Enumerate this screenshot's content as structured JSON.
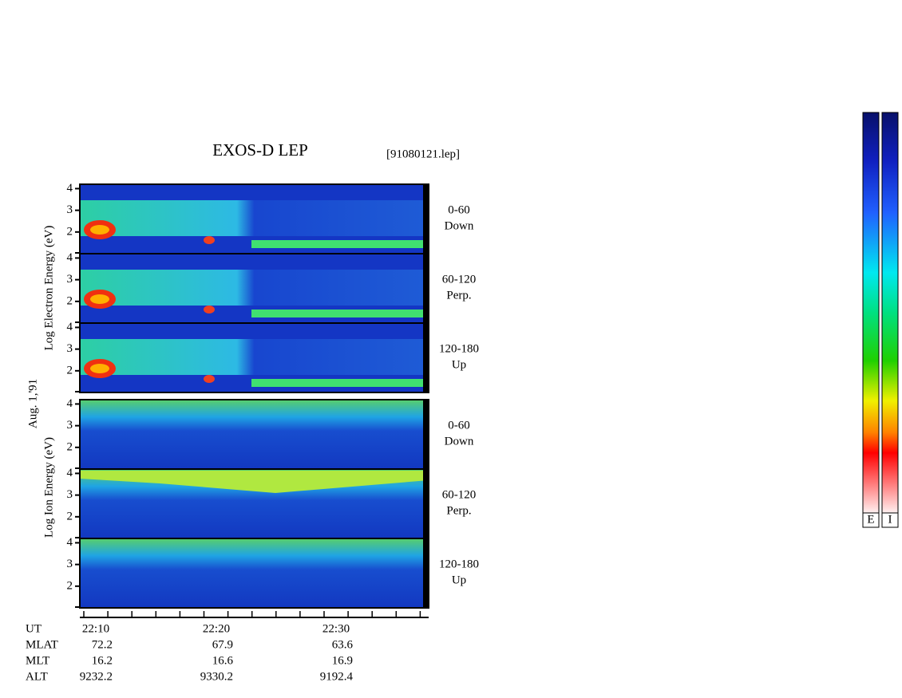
{
  "title": "EXOS-D LEP",
  "file": "[91080121.lep]",
  "date": "Aug. 1,'91",
  "ylim": [
    1,
    4.2
  ],
  "yticks": [
    2,
    3,
    4
  ],
  "groups": [
    {
      "label": "Log Electron Energy (eV)",
      "panels": [
        {
          "angle": "0-60",
          "direction": "Down"
        },
        {
          "angle": "60-120",
          "direction": "Perp."
        },
        {
          "angle": "120-180",
          "direction": "Up"
        }
      ]
    },
    {
      "label": "Log Ion Energy (eV)",
      "panels": [
        {
          "angle": "0-60",
          "direction": "Down"
        },
        {
          "angle": "60-120",
          "direction": "Perp."
        },
        {
          "angle": "120-180",
          "direction": "Up"
        }
      ]
    }
  ],
  "x_rows": [
    {
      "name": "UT",
      "values": [
        "22:10",
        "22:20",
        "22:30"
      ]
    },
    {
      "name": "MLAT",
      "values": [
        "72.2",
        "67.9",
        "63.6"
      ]
    },
    {
      "name": "MLT",
      "values": [
        "16.2",
        "16.6",
        "16.9"
      ]
    },
    {
      "name": "ALT",
      "values": [
        "9232.2",
        "9330.2",
        "9192.4"
      ]
    }
  ],
  "colorbars": [
    "E",
    "I"
  ]
}
